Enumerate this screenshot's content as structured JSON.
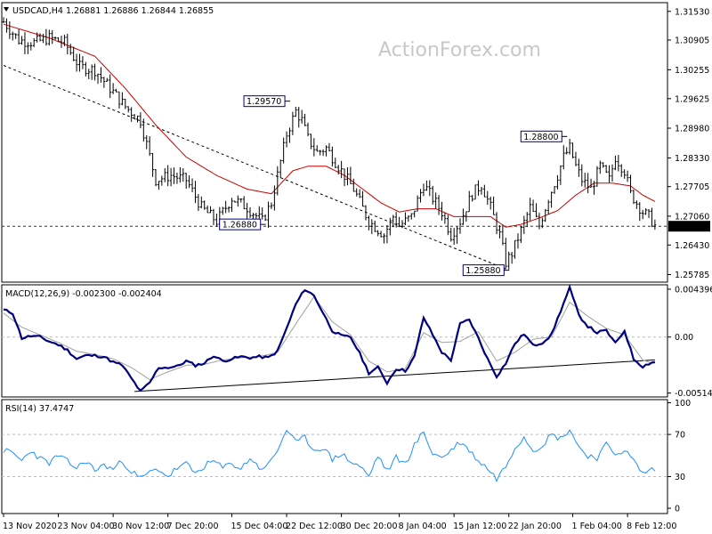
{
  "chart_data": [
    {
      "type": "ohlc",
      "header": "USDCAD,H4  1.26881 1.26886 1.26844 1.26855",
      "watermark": "ActionForex.com",
      "price_ticks": [
        "1.31530",
        "1.30905",
        "1.30255",
        "1.29625",
        "1.28980",
        "1.28330",
        "1.27705",
        "1.27060",
        "1.26430",
        "1.25785"
      ],
      "price_tick_values": [
        1.3153,
        1.30905,
        1.30255,
        1.29625,
        1.2898,
        1.2833,
        1.27705,
        1.2706,
        1.2643,
        1.25785
      ],
      "ylim": [
        1.2562,
        1.3172
      ],
      "current_price": "1.26840",
      "current_value": 1.2684,
      "annotations": [
        {
          "label": "1.29570",
          "value": 1.2957,
          "bar": 93
        },
        {
          "label": "1.26880",
          "value": 1.2688,
          "bar": 85
        },
        {
          "label": "1.25880",
          "value": 1.2588,
          "bar": 165
        },
        {
          "label": "1.28800",
          "value": 1.288,
          "bar": 184
        }
      ],
      "x_labels": [
        "13 Nov 2020",
        "23 Nov 04:00",
        "30 Nov 12:00",
        "7 Dec 20:00",
        "15 Dec 04:00",
        "22 Dec 12:00",
        "30 Dec 20:00",
        "8 Jan 04:00",
        "15 Jan 12:00",
        "22 Jan 20:00",
        "1 Feb 04:00",
        "8 Feb 12:00"
      ],
      "x_label_bars": [
        0,
        18,
        36,
        54,
        75,
        93,
        111,
        130,
        148,
        166,
        187,
        205
      ],
      "price_series": [
        [
          0,
          1.313
        ],
        [
          5,
          1.309
        ],
        [
          10,
          1.3085
        ],
        [
          15,
          1.3095
        ],
        [
          20,
          1.3085
        ],
        [
          25,
          1.3032
        ],
        [
          30,
          1.3025
        ],
        [
          35,
          1.2985
        ],
        [
          40,
          1.2945
        ],
        [
          45,
          1.2915
        ],
        [
          50,
          1.2785
        ],
        [
          55,
          1.2795
        ],
        [
          60,
          1.2785
        ],
        [
          65,
          1.2725
        ],
        [
          70,
          1.2695
        ],
        [
          75,
          1.2745
        ],
        [
          80,
          1.2725
        ],
        [
          85,
          1.2695
        ],
        [
          88,
          1.2735
        ],
        [
          90,
          1.2795
        ],
        [
          93,
          1.2885
        ],
        [
          96,
          1.2935
        ],
        [
          98,
          1.2915
        ],
        [
          100,
          1.2875
        ],
        [
          103,
          1.2845
        ],
        [
          106,
          1.2855
        ],
        [
          110,
          1.2815
        ],
        [
          115,
          1.2765
        ],
        [
          120,
          1.2695
        ],
        [
          125,
          1.2665
        ],
        [
          128,
          1.2705
        ],
        [
          130,
          1.2685
        ],
        [
          134,
          1.2705
        ],
        [
          138,
          1.2775
        ],
        [
          141,
          1.2745
        ],
        [
          144,
          1.2715
        ],
        [
          147,
          1.2665
        ],
        [
          150,
          1.2695
        ],
        [
          154,
          1.2755
        ],
        [
          157,
          1.2775
        ],
        [
          160,
          1.2725
        ],
        [
          163,
          1.2665
        ],
        [
          165,
          1.2605
        ],
        [
          167,
          1.2625
        ],
        [
          170,
          1.2675
        ],
        [
          173,
          1.2725
        ],
        [
          176,
          1.2685
        ],
        [
          179,
          1.2745
        ],
        [
          182,
          1.2795
        ],
        [
          184,
          1.2835
        ],
        [
          186,
          1.2855
        ],
        [
          188,
          1.2815
        ],
        [
          190,
          1.2785
        ],
        [
          193,
          1.2765
        ],
        [
          196,
          1.2815
        ],
        [
          199,
          1.2785
        ],
        [
          201,
          1.2835
        ],
        [
          204,
          1.2805
        ],
        [
          206,
          1.2755
        ],
        [
          208,
          1.2735
        ],
        [
          210,
          1.2715
        ],
        [
          212,
          1.2705
        ],
        [
          214,
          1.2685
        ]
      ],
      "ma_series": [
        [
          0,
          1.3125
        ],
        [
          15,
          1.3095
        ],
        [
          30,
          1.3055
        ],
        [
          40,
          1.2985
        ],
        [
          50,
          1.2905
        ],
        [
          60,
          1.2835
        ],
        [
          70,
          1.2795
        ],
        [
          80,
          1.2765
        ],
        [
          88,
          1.2755
        ],
        [
          95,
          1.2805
        ],
        [
          100,
          1.2815
        ],
        [
          106,
          1.2815
        ],
        [
          112,
          1.2795
        ],
        [
          118,
          1.2765
        ],
        [
          124,
          1.2735
        ],
        [
          130,
          1.2715
        ],
        [
          136,
          1.2722
        ],
        [
          142,
          1.2722
        ],
        [
          148,
          1.2705
        ],
        [
          154,
          1.2705
        ],
        [
          160,
          1.2705
        ],
        [
          165,
          1.2682
        ],
        [
          170,
          1.2688
        ],
        [
          176,
          1.2702
        ],
        [
          182,
          1.2718
        ],
        [
          188,
          1.2752
        ],
        [
          194,
          1.2778
        ],
        [
          200,
          1.2778
        ],
        [
          206,
          1.2772
        ],
        [
          210,
          1.2752
        ],
        [
          214,
          1.2738
        ]
      ],
      "trendline": [
        [
          0,
          1.3035
        ],
        [
          166,
          1.2588
        ]
      ]
    },
    {
      "type": "line",
      "title": "MACD(12,26,9) -0.002300 -0.002404",
      "y_ticks": [
        "0.004396",
        "0.00",
        "-0.005144"
      ],
      "y_tick_values": [
        0.004396,
        0.0,
        -0.005144
      ],
      "ylim": [
        -0.0055,
        0.0048
      ],
      "series": [
        {
          "values": [
            [
              0,
              0.0025
            ],
            [
              3,
              0.0022
            ],
            [
              6,
              -0.0001
            ],
            [
              9,
              0.0001
            ],
            [
              12,
              0.0
            ],
            [
              15,
              -0.0004
            ],
            [
              18,
              -0.0007
            ],
            [
              21,
              -0.0012
            ],
            [
              24,
              -0.002
            ],
            [
              27,
              -0.0017
            ],
            [
              30,
              -0.0017
            ],
            [
              33,
              -0.0018
            ],
            [
              36,
              -0.0023
            ],
            [
              39,
              -0.0026
            ],
            [
              42,
              -0.0038
            ],
            [
              45,
              -0.005
            ],
            [
              48,
              -0.0042
            ],
            [
              51,
              -0.0028
            ],
            [
              54,
              -0.0028
            ],
            [
              57,
              -0.0027
            ],
            [
              60,
              -0.0022
            ],
            [
              63,
              -0.0026
            ],
            [
              66,
              -0.0024
            ],
            [
              69,
              -0.0017
            ],
            [
              72,
              -0.0022
            ],
            [
              75,
              -0.002
            ],
            [
              78,
              -0.0018
            ],
            [
              81,
              -0.0019
            ],
            [
              84,
              -0.0018
            ],
            [
              87,
              -0.0019
            ],
            [
              90,
              -0.0013
            ],
            [
              93,
              0.0008
            ],
            [
              96,
              0.003
            ],
            [
              99,
              0.0044
            ],
            [
              102,
              0.0038
            ],
            [
              105,
              0.0022
            ],
            [
              108,
              0.0006
            ],
            [
              111,
              0.0001
            ],
            [
              114,
              0.0
            ],
            [
              117,
              -0.0015
            ],
            [
              120,
              -0.0033
            ],
            [
              123,
              -0.0028
            ],
            [
              126,
              -0.0042
            ],
            [
              129,
              -0.0029
            ],
            [
              132,
              -0.0031
            ],
            [
              135,
              -0.0018
            ],
            [
              138,
              0.0018
            ],
            [
              141,
              0.0002
            ],
            [
              144,
              -0.0014
            ],
            [
              147,
              -0.0021
            ],
            [
              150,
              0.0012
            ],
            [
              153,
              0.0016
            ],
            [
              156,
              -0.0001
            ],
            [
              159,
              -0.002
            ],
            [
              162,
              -0.0036
            ],
            [
              165,
              -0.0024
            ],
            [
              168,
              -0.0006
            ],
            [
              171,
              0.0003
            ],
            [
              174,
              -0.0008
            ],
            [
              177,
              -0.0005
            ],
            [
              180,
              0.0002
            ],
            [
              183,
              0.0024
            ],
            [
              186,
              0.0045
            ],
            [
              189,
              0.002
            ],
            [
              192,
              0.001
            ],
            [
              195,
              0.0004
            ],
            [
              198,
              0.0006
            ],
            [
              201,
              -0.0006
            ],
            [
              204,
              0.0006
            ],
            [
              207,
              -0.002
            ],
            [
              210,
              -0.0027
            ],
            [
              213,
              -0.0023
            ]
          ]
        },
        {
          "values": [
            [
              0,
              0.0022
            ],
            [
              6,
              0.0009
            ],
            [
              12,
              0.0002
            ],
            [
              18,
              -0.0005
            ],
            [
              24,
              -0.0013
            ],
            [
              30,
              -0.0016
            ],
            [
              36,
              -0.002
            ],
            [
              42,
              -0.0028
            ],
            [
              48,
              -0.0039
            ],
            [
              54,
              -0.0032
            ],
            [
              60,
              -0.0026
            ],
            [
              66,
              -0.0025
            ],
            [
              72,
              -0.0021
            ],
            [
              78,
              -0.0019
            ],
            [
              84,
              -0.0018
            ],
            [
              90,
              -0.0014
            ],
            [
              96,
              0.0012
            ],
            [
              102,
              0.0037
            ],
            [
              108,
              0.0014
            ],
            [
              114,
              0.0002
            ],
            [
              120,
              -0.0022
            ],
            [
              126,
              -0.0032
            ],
            [
              132,
              -0.0029
            ],
            [
              138,
              0.0004
            ],
            [
              144,
              -0.0005
            ],
            [
              150,
              -0.0004
            ],
            [
              156,
              0.0005
            ],
            [
              162,
              -0.0022
            ],
            [
              168,
              -0.0014
            ],
            [
              174,
              -0.0002
            ],
            [
              180,
              0.0
            ],
            [
              186,
              0.0032
            ],
            [
              192,
              0.0019
            ],
            [
              198,
              0.0008
            ],
            [
              204,
              0.0002
            ],
            [
              210,
              -0.0021
            ],
            [
              213,
              -0.0024
            ]
          ]
        }
      ],
      "trendline": [
        [
          43,
          -0.005
        ],
        [
          214,
          -0.0021
        ]
      ]
    },
    {
      "type": "line",
      "title": "RSI(14) 37.4747",
      "y_ticks": [
        "100",
        "70",
        "30",
        "0"
      ],
      "y_tick_values": [
        100,
        70,
        30,
        0
      ],
      "ylim": [
        -5,
        103
      ],
      "series": [
        {
          "values": [
            [
              0,
              55
            ],
            [
              3,
              52
            ],
            [
              6,
              45
            ],
            [
              9,
              55
            ],
            [
              12,
              47
            ],
            [
              15,
              43
            ],
            [
              18,
              50
            ],
            [
              21,
              44
            ],
            [
              24,
              38
            ],
            [
              27,
              45
            ],
            [
              30,
              36
            ],
            [
              33,
              41
            ],
            [
              36,
              37
            ],
            [
              39,
              45
            ],
            [
              42,
              35
            ],
            [
              45,
              28
            ],
            [
              48,
              34
            ],
            [
              51,
              37
            ],
            [
              54,
              30
            ],
            [
              57,
              38
            ],
            [
              60,
              42
            ],
            [
              63,
              33
            ],
            [
              66,
              40
            ],
            [
              69,
              45
            ],
            [
              72,
              38
            ],
            [
              75,
              43
            ],
            [
              78,
              37
            ],
            [
              81,
              48
            ],
            [
              84,
              38
            ],
            [
              87,
              41
            ],
            [
              90,
              55
            ],
            [
              93,
              75
            ],
            [
              96,
              62
            ],
            [
              99,
              67
            ],
            [
              102,
              55
            ],
            [
              105,
              58
            ],
            [
              108,
              46
            ],
            [
              111,
              52
            ],
            [
              114,
              44
            ],
            [
              117,
              40
            ],
            [
              120,
              30
            ],
            [
              123,
              50
            ],
            [
              126,
              35
            ],
            [
              129,
              48
            ],
            [
              132,
              42
            ],
            [
              135,
              60
            ],
            [
              138,
              72
            ],
            [
              141,
              52
            ],
            [
              144,
              48
            ],
            [
              147,
              55
            ],
            [
              150,
              63
            ],
            [
              153,
              55
            ],
            [
              156,
              45
            ],
            [
              159,
              38
            ],
            [
              162,
              28
            ],
            [
              165,
              40
            ],
            [
              168,
              58
            ],
            [
              171,
              68
            ],
            [
              174,
              55
            ],
            [
              177,
              60
            ],
            [
              180,
              70
            ],
            [
              183,
              66
            ],
            [
              186,
              75
            ],
            [
              189,
              58
            ],
            [
              192,
              50
            ],
            [
              195,
              48
            ],
            [
              198,
              60
            ],
            [
              201,
              52
            ],
            [
              204,
              55
            ],
            [
              207,
              45
            ],
            [
              210,
              33
            ],
            [
              213,
              37
            ]
          ]
        }
      ]
    }
  ]
}
